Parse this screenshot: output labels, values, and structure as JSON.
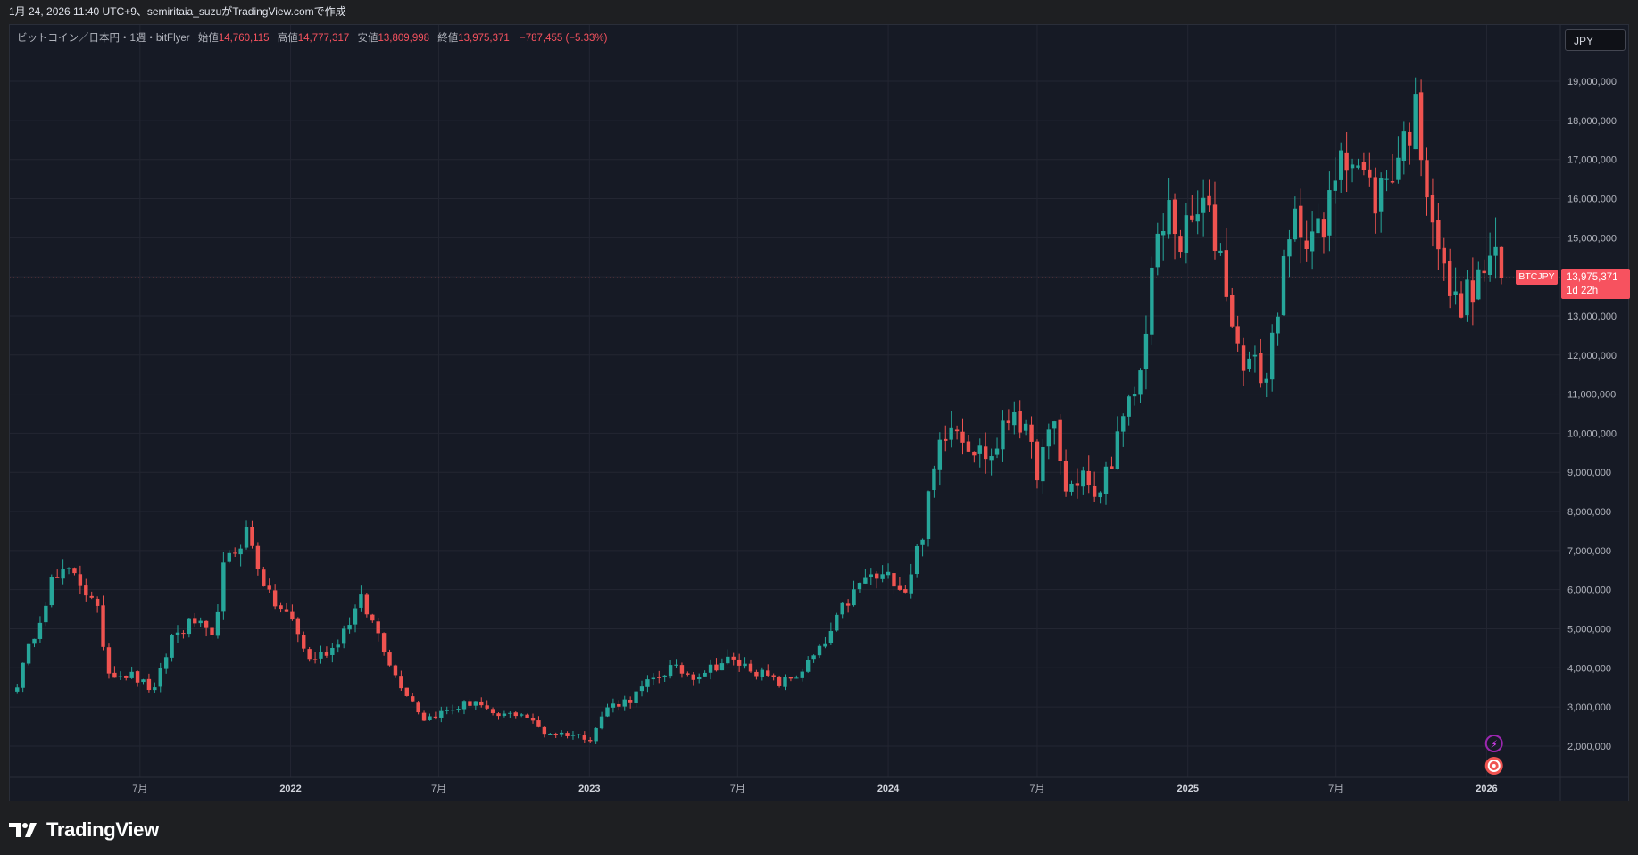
{
  "header": {
    "caption": "1月 24, 2026 11:40 UTC+9、semiritaia_suzuがTradingView.comで作成"
  },
  "legend": {
    "symbol": "ビットコイン／日本円・1週・bitFlyer",
    "open_label": "始値",
    "open_value": "14,760,115",
    "high_label": "高値",
    "high_value": "14,777,317",
    "low_label": "安値",
    "low_value": "13,809,998",
    "close_label": "終値",
    "close_value": "13,975,371",
    "change": "−787,455 (−5.33%)"
  },
  "currency_button": "JPY",
  "price_tag": {
    "symbol": "BTCJPY",
    "price": "13,975,371",
    "countdown": "1d 22h",
    "value": 13975371
  },
  "brand": "TradingView",
  "colors": {
    "up": "#26a69a",
    "down": "#ef5350",
    "background": "#161a25",
    "grid": "#232632",
    "axis_text": "#b2b5be"
  },
  "chart_data": {
    "type": "candlestick",
    "interval": "1W",
    "currency": "JPY",
    "x_tick_labels": [
      "7月",
      "2022",
      "7月",
      "2023",
      "7月",
      "2024",
      "7月",
      "2025",
      "7月",
      "2026"
    ],
    "x_tick_dates": [
      "2021-07-01",
      "2022-01-01",
      "2022-07-01",
      "2023-01-01",
      "2023-07-01",
      "2024-01-01",
      "2024-07-01",
      "2025-01-01",
      "2025-07-01",
      "2026-01-01"
    ],
    "y_ticks": [
      2000000,
      3000000,
      4000000,
      5000000,
      6000000,
      7000000,
      8000000,
      9000000,
      10000000,
      11000000,
      12000000,
      13000000,
      14000000,
      15000000,
      16000000,
      17000000,
      18000000,
      19000000
    ],
    "y_tick_labels": [
      "2,000,000",
      "3,000,000",
      "4,000,000",
      "5,000,000",
      "6,000,000",
      "7,000,000",
      "8,000,000",
      "9,000,000",
      "10,000,000",
      "11,000,000",
      "12,000,000",
      "13,000,000",
      "14,000,000",
      "15,000,000",
      "16,000,000",
      "17,000,000",
      "18,000,000",
      "19,000,000"
    ],
    "ylim": [
      1200000,
      19800000
    ],
    "grid": true,
    "last_price_line": 13975371,
    "close_path": [
      [
        "2021-02-01",
        3600000
      ],
      [
        "2021-03-15",
        6200000
      ],
      [
        "2021-04-12",
        6500000
      ],
      [
        "2021-05-10",
        5400000
      ],
      [
        "2021-05-24",
        3900000
      ],
      [
        "2021-06-21",
        3800000
      ],
      [
        "2021-07-19",
        3400000
      ],
      [
        "2021-08-09",
        4800000
      ],
      [
        "2021-09-06",
        5200000
      ],
      [
        "2021-09-27",
        4700000
      ],
      [
        "2021-10-11",
        6500000
      ],
      [
        "2021-11-08",
        7500000
      ],
      [
        "2021-12-06",
        5800000
      ],
      [
        "2022-01-03",
        5200000
      ],
      [
        "2022-01-24",
        4200000
      ],
      [
        "2022-02-21",
        4500000
      ],
      [
        "2022-03-28",
        5700000
      ],
      [
        "2022-04-18",
        4900000
      ],
      [
        "2022-05-09",
        3800000
      ],
      [
        "2022-06-13",
        2700000
      ],
      [
        "2022-07-11",
        2900000
      ],
      [
        "2022-08-15",
        3150000
      ],
      [
        "2022-09-05",
        2750000
      ],
      [
        "2022-10-10",
        2850000
      ],
      [
        "2022-11-07",
        2350000
      ],
      [
        "2022-12-12",
        2300000
      ],
      [
        "2023-01-02",
        2200000
      ],
      [
        "2023-01-23",
        3000000
      ],
      [
        "2023-02-20",
        3200000
      ],
      [
        "2023-03-13",
        3600000
      ],
      [
        "2023-04-10",
        4000000
      ],
      [
        "2023-05-08",
        3800000
      ],
      [
        "2023-06-19",
        4200000
      ],
      [
        "2023-07-17",
        4000000
      ],
      [
        "2023-08-21",
        3600000
      ],
      [
        "2023-09-11",
        3800000
      ],
      [
        "2023-10-16",
        4600000
      ],
      [
        "2023-11-06",
        5500000
      ],
      [
        "2023-12-04",
        6300000
      ],
      [
        "2024-01-08",
        6300000
      ],
      [
        "2024-01-22",
        6000000
      ],
      [
        "2024-02-12",
        7500000
      ],
      [
        "2024-03-04",
        9800000
      ],
      [
        "2024-03-18",
        10400000
      ],
      [
        "2024-04-15",
        9600000
      ],
      [
        "2024-05-06",
        9400000
      ],
      [
        "2024-06-03",
        10700000
      ],
      [
        "2024-07-01",
        9100000
      ],
      [
        "2024-07-22",
        10200000
      ],
      [
        "2024-08-05",
        8500000
      ],
      [
        "2024-08-26",
        9000000
      ],
      [
        "2024-09-09",
        8200000
      ],
      [
        "2024-10-07",
        9800000
      ],
      [
        "2024-11-04",
        11500000
      ],
      [
        "2024-11-18",
        14200000
      ],
      [
        "2024-12-09",
        15700000
      ],
      [
        "2024-12-23",
        14900000
      ],
      [
        "2025-01-20",
        15800000
      ],
      [
        "2025-02-10",
        14600000
      ],
      [
        "2025-03-03",
        12100000
      ],
      [
        "2025-04-07",
        11400000
      ],
      [
        "2025-04-21",
        13400000
      ],
      [
        "2025-05-12",
        15400000
      ],
      [
        "2025-06-16",
        15000000
      ],
      [
        "2025-07-07",
        17500000
      ],
      [
        "2025-07-28",
        16800000
      ],
      [
        "2025-08-18",
        16000000
      ],
      [
        "2025-09-08",
        16800000
      ],
      [
        "2025-10-06",
        18200000
      ],
      [
        "2025-10-20",
        16500000
      ],
      [
        "2025-11-10",
        14000000
      ],
      [
        "2025-11-24",
        13300000
      ],
      [
        "2025-12-15",
        13600000
      ],
      [
        "2026-01-05",
        14500000
      ],
      [
        "2026-01-12",
        14760115
      ],
      [
        "2026-01-19",
        13975371
      ]
    ],
    "last_candle": {
      "date": "2026-01-19",
      "open": 14760115,
      "high": 14777317,
      "low": 13809998,
      "close": 13975371
    }
  }
}
